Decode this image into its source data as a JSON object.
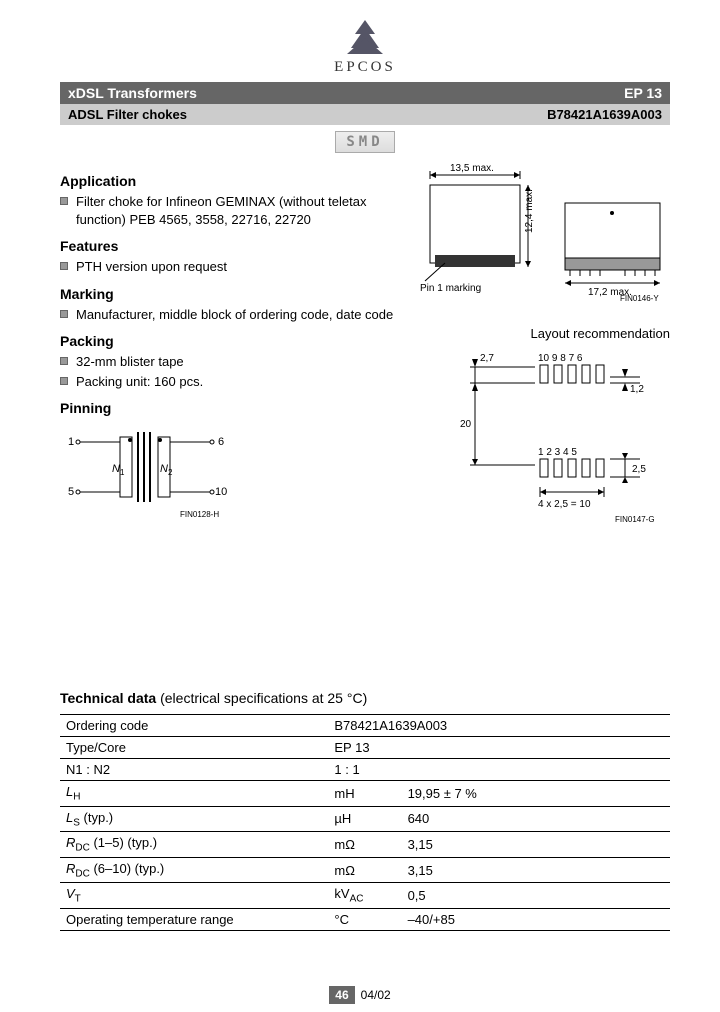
{
  "logo": {
    "brand": "EPCOS"
  },
  "header": {
    "bar1_left": "xDSL Transformers",
    "bar1_right": "EP 13",
    "bar2_left": "ADSL Filter chokes",
    "bar2_right": "B78421A1639A003"
  },
  "smd_label": "SMD",
  "sections": {
    "application": {
      "title": "Application",
      "items": [
        "Filter choke for Infineon GEMINAX (without teletax function) PEB 4565, 3558, 22716, 22720"
      ]
    },
    "features": {
      "title": "Features",
      "items": [
        "PTH version upon request"
      ]
    },
    "marking": {
      "title": "Marking",
      "items": [
        "Manufacturer, middle block of ordering code, date code"
      ]
    },
    "packing": {
      "title": "Packing",
      "items": [
        "32-mm blister tape",
        "Packing unit: 160 pcs."
      ]
    },
    "pinning": {
      "title": "Pinning",
      "pins": {
        "tl": "1",
        "bl": "5",
        "tr": "6",
        "br": "10",
        "n1": "N",
        "n2": "N"
      },
      "ref": "FIN0128-H"
    }
  },
  "mech_drawing": {
    "width_label": "13,5 max.",
    "height_label": "12,4 max.",
    "depth_label": "17,2 max.",
    "pin1": "Pin 1 marking",
    "ref": "FIN0146-Y"
  },
  "layout": {
    "title": "Layout recommendation",
    "top_pins": "10 9 8 7 6",
    "bot_pins": "1 2 3 4 5",
    "h27": "2,7",
    "h12": "1,2",
    "v20": "20",
    "h25": "2,5",
    "pitch": "4 x 2,5 = 10",
    "ref": "FIN0147-G"
  },
  "tech": {
    "title_bold": "Technical data",
    "title_rest": " (electrical specifications at 25 °C)",
    "rows": [
      {
        "param": "Ordering code",
        "unit": "",
        "value": "B78421A1639A003",
        "merge": true
      },
      {
        "param": "Type/Core",
        "unit": "",
        "value": "EP 13",
        "merge": true
      },
      {
        "param": "N1 : N2",
        "unit": "",
        "value": "1 : 1",
        "merge": true
      },
      {
        "param_html": "<span class='ital'>L</span><span class='sub'>H</span>",
        "unit": "mH",
        "value": "19,95 ± 7 %"
      },
      {
        "param_html": "<span class='ital'>L</span><span class='sub'>S</span> (typ.)",
        "unit": "µH",
        "value": "640"
      },
      {
        "param_html": "<span class='ital'>R</span><span class='sub'>DC</span> (1–5) (typ.)",
        "unit": "mΩ",
        "value": "3,15"
      },
      {
        "param_html": "<span class='ital'>R</span><span class='sub'>DC</span> (6–10) (typ.)",
        "unit": "mΩ",
        "value": "3,15"
      },
      {
        "param_html": "<span class='ital'>V</span><span class='sub'>T</span>",
        "unit_html": "kV<span class='sub'>AC</span>",
        "value": "0,5"
      },
      {
        "param": "Operating temperature range",
        "unit": "°C",
        "value": "–40/+85"
      }
    ]
  },
  "footer": {
    "page": "46",
    "date": "04/02"
  },
  "colors": {
    "bar_dark": "#666666",
    "bar_light": "#cccccc",
    "bullet": "#999999",
    "text": "#000000"
  }
}
